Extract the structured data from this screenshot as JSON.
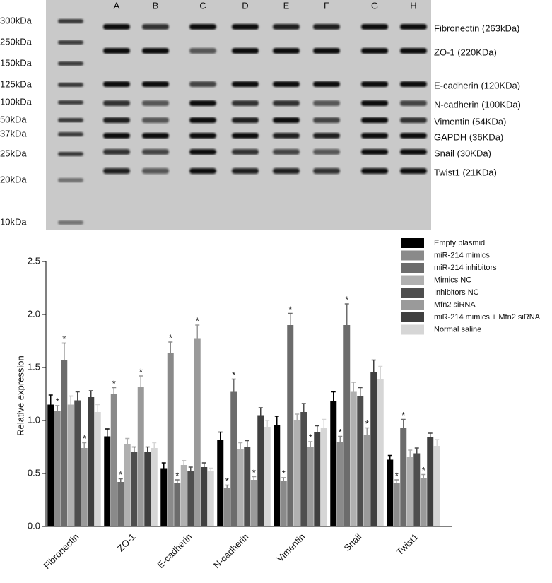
{
  "blot": {
    "lanes": [
      "A",
      "B",
      "C",
      "D",
      "E",
      "F",
      "G",
      "H"
    ],
    "markers": [
      "300kDa",
      "250kDa",
      "150kDa",
      "125kDa",
      "100kDa",
      "50kDa",
      "37kDa",
      "25kDa",
      "20kDa",
      "10kDa"
    ],
    "proteins": [
      "Fibronectin  (263kDa)",
      "ZO-1  (220KDa)",
      "E-cadherin  (120KDa)",
      "N-cadherin  (100KDa)",
      "Vimentin  (54KDa)",
      "GAPDH  (36KDa)",
      "Snail  (30KDa)",
      "Twist1  (21KDa)"
    ]
  },
  "chart_data": {
    "type": "bar",
    "y_label": "Relative expression",
    "categories": [
      "Fibronectin",
      "ZO-1",
      "E-cadherin",
      "N-cadherin",
      "Vimentin",
      "Snail",
      "Twist1"
    ],
    "series": [
      {
        "name": "Empty plasmid",
        "color": "#000000",
        "values": [
          1.15,
          0.85,
          0.55,
          0.82,
          0.96,
          1.18,
          0.63
        ],
        "errors": [
          0.09,
          0.07,
          0.05,
          0.07,
          0.08,
          0.09,
          0.04
        ]
      },
      {
        "name": "miR-214 mimics",
        "color": "#8a8a8a",
        "values": [
          1.09,
          1.25,
          1.64,
          0.36,
          0.43,
          0.8,
          0.41
        ],
        "errors": [
          0.05,
          0.06,
          0.1,
          0.03,
          0.03,
          0.05,
          0.03
        ]
      },
      {
        "name": "miR-214 inhibitors",
        "color": "#6c6c6c",
        "values": [
          1.57,
          0.42,
          0.41,
          1.27,
          1.9,
          1.9,
          0.93
        ],
        "errors": [
          0.16,
          0.03,
          0.03,
          0.12,
          0.11,
          0.2,
          0.08
        ]
      },
      {
        "name": "Mimics NC",
        "color": "#b0b0b0",
        "values": [
          1.15,
          0.78,
          0.58,
          0.73,
          1.0,
          1.27,
          0.66
        ],
        "errors": [
          0.08,
          0.05,
          0.04,
          0.06,
          0.06,
          0.09,
          0.06
        ]
      },
      {
        "name": "Inhibitors NC",
        "color": "#4e4e4e",
        "values": [
          1.19,
          0.7,
          0.52,
          0.75,
          1.08,
          1.23,
          0.69
        ],
        "errors": [
          0.08,
          0.05,
          0.04,
          0.06,
          0.08,
          0.08,
          0.05
        ]
      },
      {
        "name": "Mfn2 siRNA",
        "color": "#9a9a9a",
        "values": [
          0.74,
          1.32,
          1.77,
          0.44,
          0.75,
          0.86,
          0.46
        ],
        "errors": [
          0.05,
          0.1,
          0.13,
          0.03,
          0.05,
          0.07,
          0.03
        ]
      },
      {
        "name": "miR-214 mimics + Mfn2 siRNA",
        "color": "#404040",
        "values": [
          1.22,
          0.7,
          0.56,
          1.05,
          0.89,
          1.46,
          0.84
        ],
        "errors": [
          0.06,
          0.05,
          0.04,
          0.07,
          0.06,
          0.11,
          0.04
        ]
      },
      {
        "name": "Normal saline",
        "color": "#d6d6d6",
        "values": [
          1.08,
          0.74,
          0.52,
          0.94,
          0.93,
          1.39,
          0.76
        ],
        "errors": [
          0.07,
          0.05,
          0.03,
          0.06,
          0.08,
          0.12,
          0.06
        ]
      }
    ],
    "significance": {
      "label": "*",
      "series": [
        1,
        2,
        5
      ]
    },
    "ylim": [
      0,
      2.5
    ],
    "yticks": [
      {
        "value": 0,
        "label": "0.0"
      },
      0.5,
      {
        "value": 1,
        "label": "1.0"
      },
      1.5,
      {
        "value": 2,
        "label": "2.0"
      },
      2.5
    ]
  }
}
